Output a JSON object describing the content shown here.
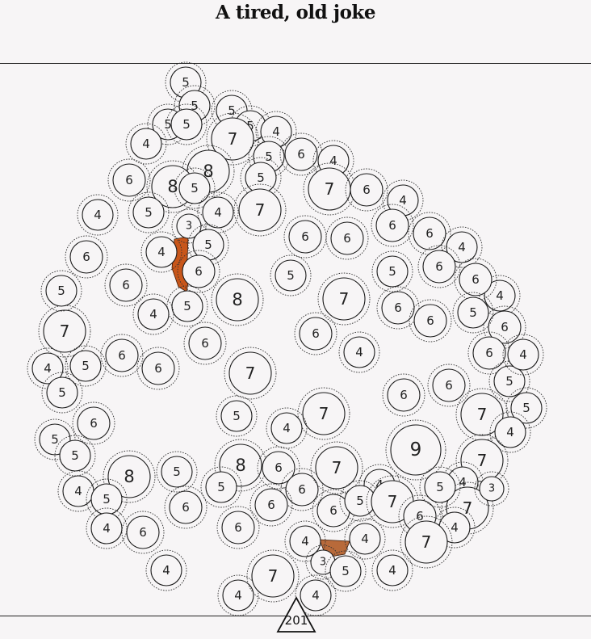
{
  "title": "A tired, old joke",
  "move_number": "201",
  "colors": {
    "background": "#f7f5f6",
    "stroke": "#1a1a1a",
    "highlight_region": "#c8561a",
    "highlight_region_light": "#b86a3a"
  },
  "circles": [
    {
      "v": 5
    },
    {
      "v": 5
    },
    {
      "v": 5
    },
    {
      "v": 5
    },
    {
      "v": 5
    },
    {
      "v": 5
    },
    {
      "v": 7
    },
    {
      "v": 4
    },
    {
      "v": 4
    },
    {
      "v": 5
    },
    {
      "v": 6
    },
    {
      "v": 4
    },
    {
      "v": 8
    },
    {
      "v": 6
    },
    {
      "v": 8
    },
    {
      "v": 5
    },
    {
      "v": 5
    },
    {
      "v": 7
    },
    {
      "v": 6
    },
    {
      "v": 4
    },
    {
      "v": 4
    },
    {
      "v": 5
    },
    {
      "v": 4
    },
    {
      "v": 7
    },
    {
      "v": 3
    },
    {
      "v": 5
    },
    {
      "v": 4
    },
    {
      "v": 6
    },
    {
      "v": 6
    },
    {
      "v": 6
    },
    {
      "v": 6
    },
    {
      "v": 6
    },
    {
      "v": 4
    },
    {
      "v": 6
    },
    {
      "v": 6
    },
    {
      "v": 5
    },
    {
      "v": 8
    },
    {
      "v": 5
    },
    {
      "v": 5
    },
    {
      "v": 6
    },
    {
      "v": 4
    },
    {
      "v": 7
    },
    {
      "v": 7
    },
    {
      "v": 6
    },
    {
      "v": 5
    },
    {
      "v": 6
    },
    {
      "v": 6
    },
    {
      "v": 4
    },
    {
      "v": 4
    },
    {
      "v": 6
    },
    {
      "v": 6
    },
    {
      "v": 4
    },
    {
      "v": 5
    },
    {
      "v": 5
    },
    {
      "v": 6
    },
    {
      "v": 6
    },
    {
      "v": 7
    },
    {
      "v": 5
    },
    {
      "v": 6
    },
    {
      "v": 6
    },
    {
      "v": 6
    },
    {
      "v": 6
    },
    {
      "v": 5
    },
    {
      "v": 5
    },
    {
      "v": 5
    },
    {
      "v": 4
    },
    {
      "v": 7
    },
    {
      "v": 7
    },
    {
      "v": 4
    },
    {
      "v": 4
    },
    {
      "v": 5
    },
    {
      "v": 5
    },
    {
      "v": 9
    },
    {
      "v": 7
    },
    {
      "v": 6
    },
    {
      "v": 8
    },
    {
      "v": 5
    },
    {
      "v": 8
    },
    {
      "v": 5
    },
    {
      "v": 6
    },
    {
      "v": 6
    },
    {
      "v": 4
    },
    {
      "v": 5
    },
    {
      "v": 4
    },
    {
      "v": 6
    },
    {
      "v": 6
    },
    {
      "v": 6
    },
    {
      "v": 7
    },
    {
      "v": 4
    },
    {
      "v": 5
    },
    {
      "v": 4
    },
    {
      "v": 7
    },
    {
      "v": 6
    },
    {
      "v": 7
    },
    {
      "v": 5
    },
    {
      "v": 3
    },
    {
      "v": 4
    },
    {
      "v": 4
    },
    {
      "v": 6
    },
    {
      "v": 6
    },
    {
      "v": 4
    },
    {
      "v": 4
    },
    {
      "v": 3
    },
    {
      "v": 5
    },
    {
      "v": 4
    },
    {
      "v": 7
    },
    {
      "v": 4
    },
    {
      "v": 7
    },
    {
      "v": 4
    }
  ]
}
